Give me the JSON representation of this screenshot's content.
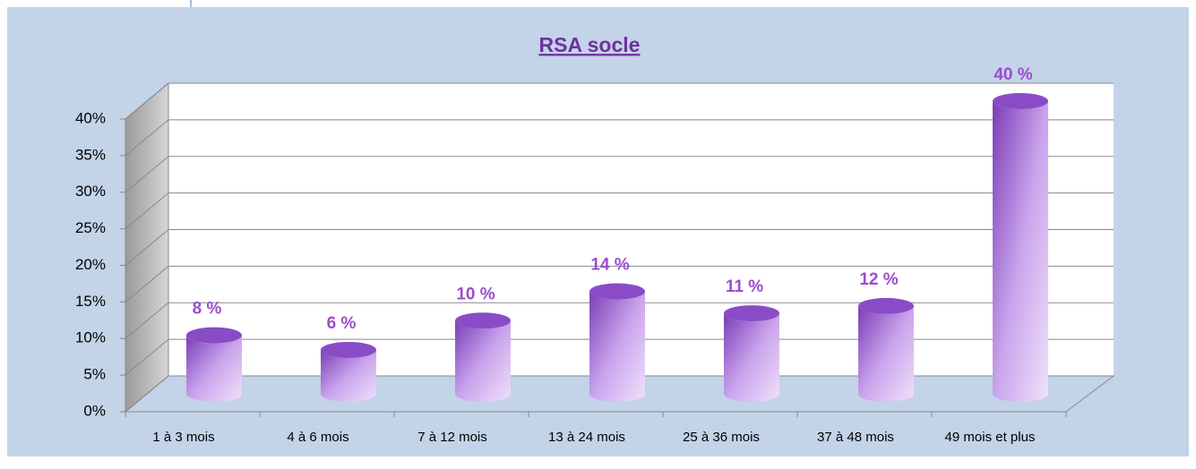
{
  "chart_data": {
    "type": "bar3d",
    "title": "RSA socle",
    "categories": [
      "1 à 3 mois",
      "4 à 6 mois",
      "7 à 12 mois",
      "13 à 24 mois",
      "25 à 36 mois",
      "37 à 48 mois",
      "49 mois et plus"
    ],
    "values": [
      8,
      6,
      10,
      14,
      11,
      12,
      40
    ],
    "value_labels": [
      "8 %",
      "6 %",
      "10 %",
      "14 %",
      "11 %",
      "12 %",
      "40 %"
    ],
    "color": "#8a4cc6",
    "ylim": [
      0,
      40
    ],
    "yticks": [
      {
        "value": 0,
        "label": "0%"
      },
      {
        "value": 5,
        "label": "5%"
      },
      {
        "value": 10,
        "label": "10%"
      },
      {
        "value": 15,
        "label": "15%"
      },
      {
        "value": 20,
        "label": "20%"
      },
      {
        "value": 25,
        "label": "25%"
      },
      {
        "value": 30,
        "label": "30%"
      },
      {
        "value": 35,
        "label": "35%"
      },
      {
        "value": 40,
        "label": "40%"
      }
    ],
    "grid": true
  }
}
